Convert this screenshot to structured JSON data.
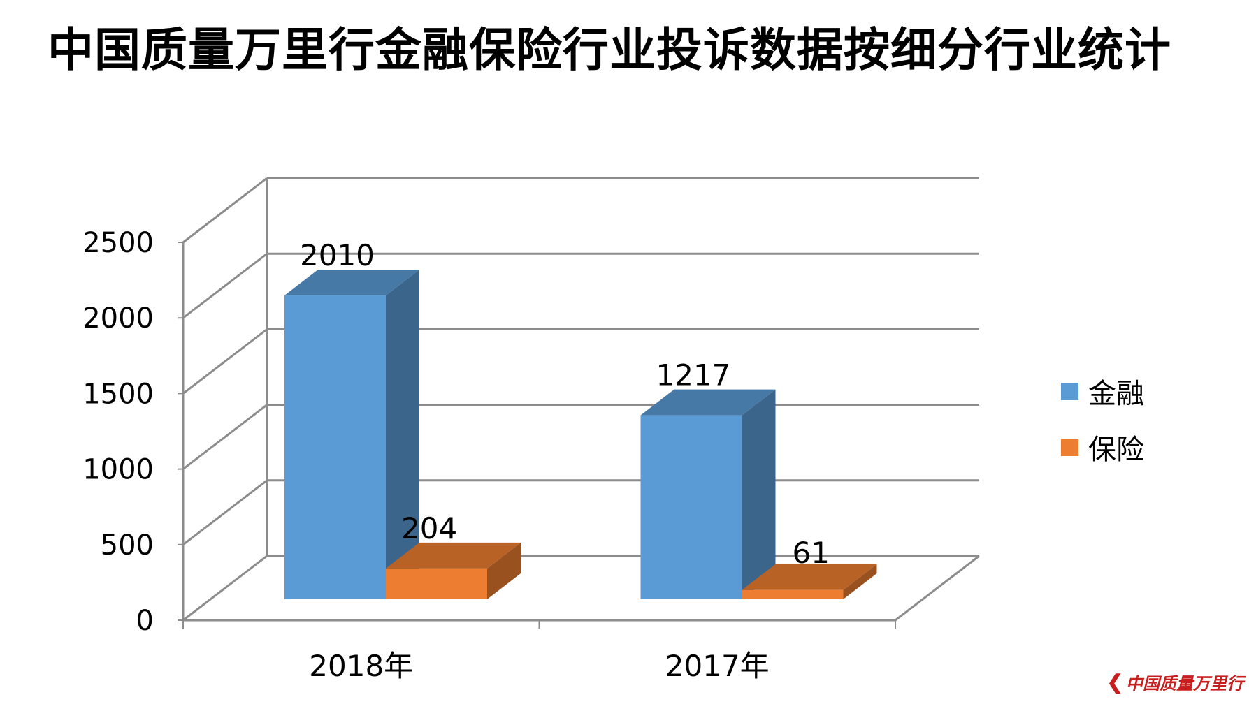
{
  "title": "中国质量万里行金融保险行业投诉数据按细分行业统计",
  "logo": {
    "icon": "chevron-logo-icon",
    "mark": "❮",
    "text": "中国质量万里行"
  },
  "chart_data": {
    "type": "bar",
    "categories": [
      "2018年",
      "2017年"
    ],
    "series": [
      {
        "name": "金融",
        "values": [
          2010,
          1217
        ],
        "color": "#5b9bd5"
      },
      {
        "name": "保险",
        "values": [
          204,
          61
        ],
        "color": "#ed7d31"
      }
    ],
    "ylim": [
      0,
      2500
    ],
    "yticks": [
      0,
      500,
      1000,
      1500,
      2000,
      2500
    ],
    "grid": true,
    "legend_position": "right",
    "three_d": true
  }
}
